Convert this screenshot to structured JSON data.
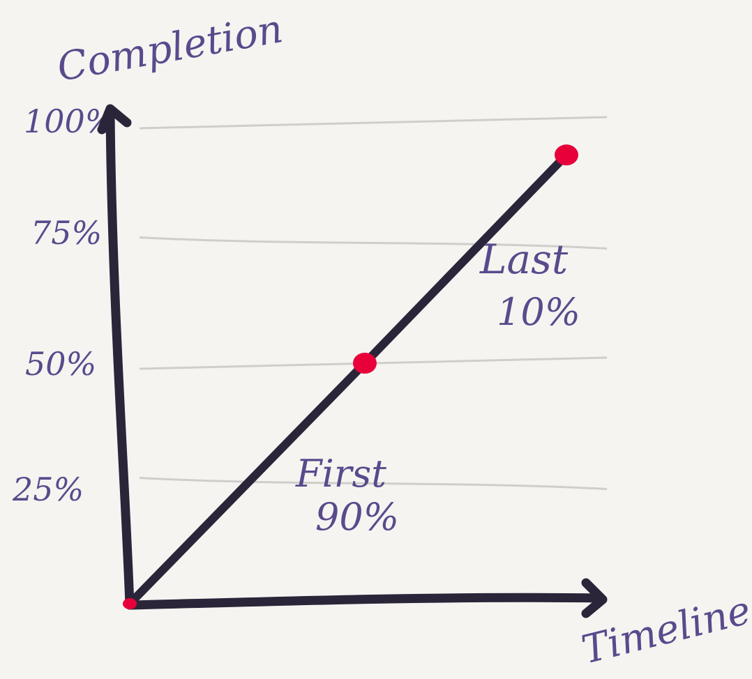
{
  "chart_data": {
    "type": "line",
    "title": "",
    "xlabel": "Timeline",
    "ylabel": "Completion",
    "yticks": [
      "25%",
      "50%",
      "75%",
      "100%"
    ],
    "ylim": [
      0,
      100
    ],
    "grid": true,
    "series": [
      {
        "points": [
          {
            "x": 0,
            "y": 0
          },
          {
            "x": 0.54,
            "y": 50
          },
          {
            "x": 1,
            "y": 93
          }
        ]
      }
    ],
    "highlight_points": [
      {
        "x": 0,
        "y": 0
      },
      {
        "x": 0.54,
        "y": 50
      },
      {
        "x": 1,
        "y": 93
      }
    ],
    "annotations": [
      {
        "text": [
          "First",
          "90%"
        ]
      },
      {
        "text": [
          "Last",
          "10%"
        ]
      }
    ],
    "colors": {
      "background": "#f5f4f1",
      "axis": "#2b2539",
      "line": "#2b2539",
      "points": "#e8003a",
      "text": "#5a4a8c",
      "grid": "#c9c7c3"
    }
  }
}
